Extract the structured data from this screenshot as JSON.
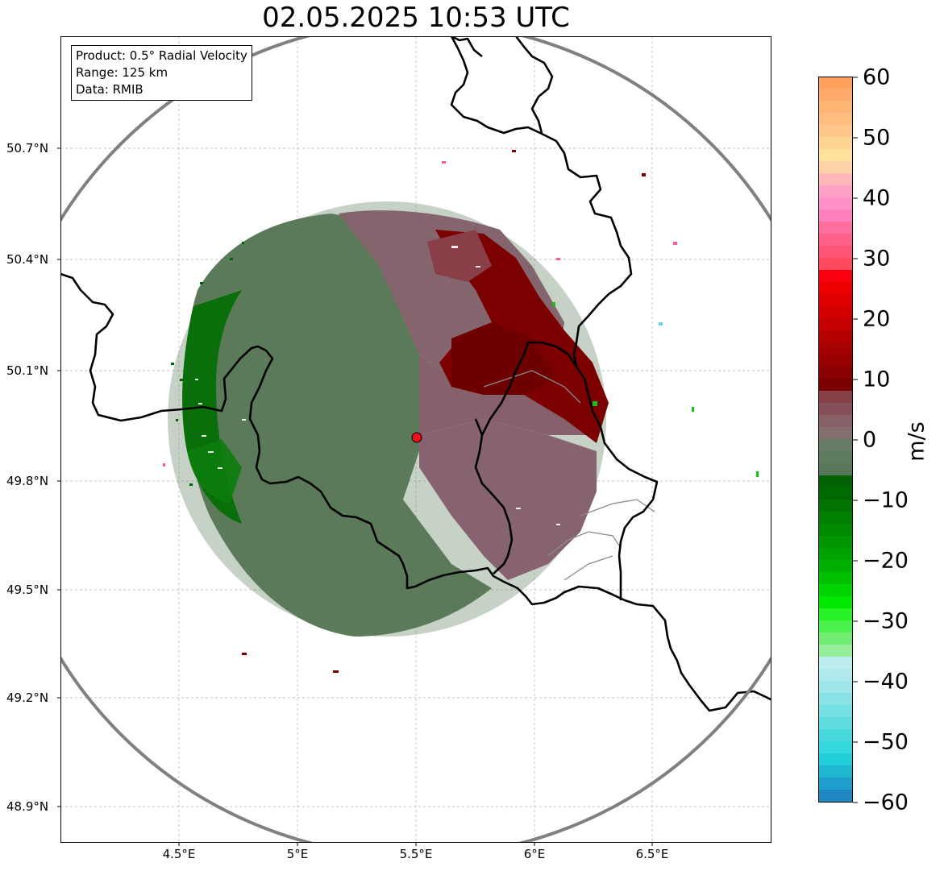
{
  "title": "02.05.2025 10:53 UTC",
  "info": {
    "product": "Product: 0.5° Radial Velocity",
    "range": "Range: 125 km",
    "source": "Data: RMIB"
  },
  "lat_labels": [
    "50.7°N",
    "50.4°N",
    "50.1°N",
    "49.8°N",
    "49.5°N",
    "49.2°N",
    "48.9°N"
  ],
  "lon_labels": [
    "4.5°E",
    "5°E",
    "5.5°E",
    "6°E",
    "6.5°E"
  ],
  "colorbar": {
    "label": "m/s",
    "ticks": [
      "60",
      "50",
      "40",
      "30",
      "20",
      "10",
      "0",
      "−10",
      "−20",
      "−30",
      "−40",
      "−50",
      "−60"
    ],
    "range": [
      -60,
      60
    ]
  },
  "radar_site": {
    "lon": 5.5,
    "lat": 49.91,
    "color": "#e8101a"
  },
  "colors": {
    "approaching_strong": "#006400",
    "approaching_weak": "#5b7a5b",
    "receding_weak": "#86606a",
    "receding_strong": "#7a0000",
    "range_ring": "#808080",
    "border": "#000000"
  }
}
